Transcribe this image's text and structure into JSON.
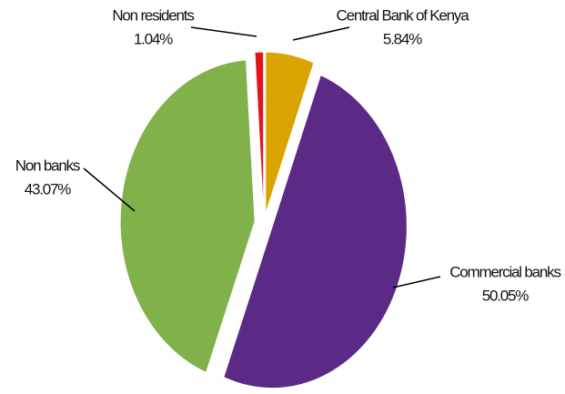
{
  "chart_data": {
    "type": "pie",
    "categories": [
      "Central Bank of Kenya",
      "Commercial banks",
      "Non banks",
      "Non residents"
    ],
    "values": [
      5.84,
      50.05,
      43.07,
      1.04
    ],
    "value_labels": [
      "5.84%",
      "50.05%",
      "43.07%",
      "1.04%"
    ],
    "colors": [
      "#d9a300",
      "#5b2a86",
      "#80b14b",
      "#e3141c"
    ]
  }
}
